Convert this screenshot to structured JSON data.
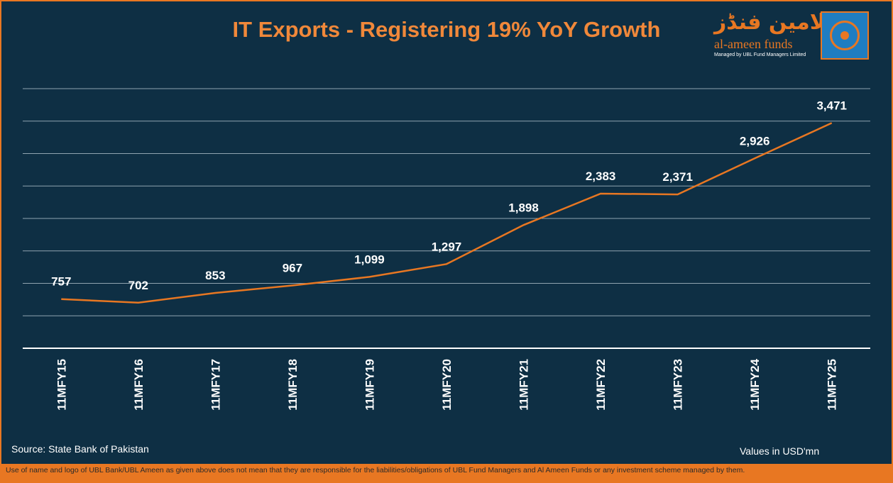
{
  "chart_data": {
    "type": "line",
    "title": "IT Exports - Registering 19% YoY Growth",
    "categories": [
      "11MFY15",
      "11MFY16",
      "11MFY17",
      "11MFY18",
      "11MFY19",
      "11MFY20",
      "11MFY21",
      "11MFY22",
      "11MFY23",
      "11MFY24",
      "11MFY25"
    ],
    "values": [
      757,
      702,
      853,
      967,
      1099,
      1297,
      1898,
      2383,
      2371,
      2926,
      3471
    ],
    "labels": [
      "757",
      "702",
      "853",
      "967",
      "1,099",
      "1,297",
      "1,898",
      "2,383",
      "2,371",
      "2,926",
      "3,471"
    ],
    "xlabel": "",
    "ylabel": "",
    "ylim": [
      0,
      4000
    ],
    "grid": true,
    "series_color": "#e87722"
  },
  "logo": {
    "arabic": "الامین فنڈز",
    "name": "al-ameen funds",
    "subtitle": "Managed by UBL Fund Managers Limited"
  },
  "footer": {
    "source": "Source: State Bank of Pakistan",
    "units": "Values in USD'mn",
    "disclaimer": "Use of name and logo of UBL Bank/UBL Ameen as given above does not mean that they are responsible for the liabilities/obligations of UBL Fund Managers and Al Ameen Funds or any investment scheme managed by them."
  },
  "colors": {
    "background": "#0e2f44",
    "accent": "#e87722",
    "title": "#f0883a"
  }
}
